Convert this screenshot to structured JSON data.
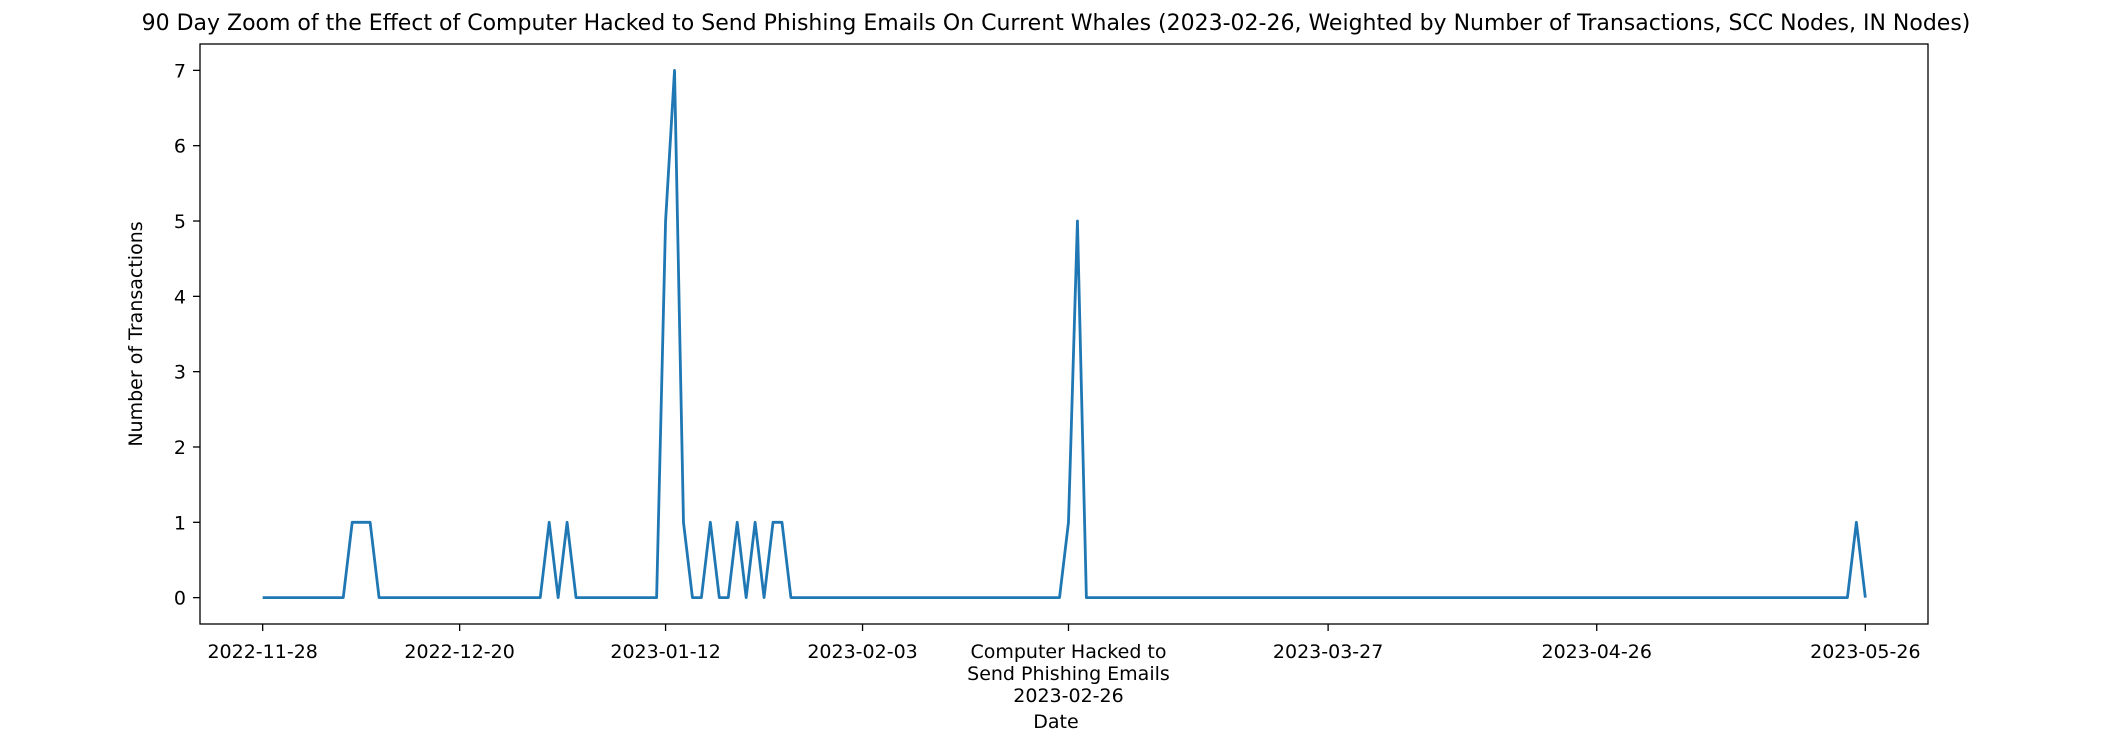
{
  "chart_data": {
    "type": "line",
    "title": "90 Day Zoom of the Effect of Computer Hacked to Send Phishing Emails On Current Whales (2023-02-26, Weighted by Number of Transactions, SCC Nodes, IN Nodes)",
    "xlabel": "Date",
    "ylabel": "Number of Transactions",
    "xlim": [
      "2022-11-21",
      "2023-06-02"
    ],
    "ylim": [
      -0.35,
      7.35
    ],
    "grid": false,
    "line_color": "#1f77b4",
    "x_ticks": [
      {
        "date": "2022-11-28",
        "label": "2022-11-28"
      },
      {
        "date": "2022-12-20",
        "label": "2022-12-20"
      },
      {
        "date": "2023-01-12",
        "label": "2023-01-12"
      },
      {
        "date": "2023-02-03",
        "label": "2023-02-03"
      },
      {
        "date": "2023-02-26",
        "label": "Computer Hacked to\nSend Phishing Emails\n2023-02-26"
      },
      {
        "date": "2023-03-27",
        "label": "2023-03-27"
      },
      {
        "date": "2023-04-26",
        "label": "2023-04-26"
      },
      {
        "date": "2023-05-26",
        "label": "2023-05-26"
      }
    ],
    "y_ticks": [
      0,
      1,
      2,
      3,
      4,
      5,
      6,
      7
    ],
    "series": [
      {
        "x": [
          "2022-11-28",
          "2022-12-07",
          "2022-12-08",
          "2022-12-09",
          "2022-12-10",
          "2022-12-11",
          "2022-12-29",
          "2022-12-30",
          "2022-12-31",
          "2023-01-01",
          "2023-01-02",
          "2023-01-11",
          "2023-01-12",
          "2023-01-13",
          "2023-01-14",
          "2023-01-15",
          "2023-01-16",
          "2023-01-17",
          "2023-01-18",
          "2023-01-19",
          "2023-01-20",
          "2023-01-21",
          "2023-01-22",
          "2023-01-23",
          "2023-01-24",
          "2023-01-25",
          "2023-01-26",
          "2023-01-27",
          "2023-01-28",
          "2023-02-25",
          "2023-02-26",
          "2023-02-27",
          "2023-02-28",
          "2023-05-24",
          "2023-05-25",
          "2023-05-26"
        ],
        "values": [
          0,
          0,
          1,
          1,
          1,
          0,
          0,
          1,
          0,
          1,
          0,
          0,
          5,
          7,
          1,
          0,
          0,
          1,
          0,
          0,
          1,
          0,
          1,
          0,
          1,
          1,
          0,
          0,
          0,
          0,
          1,
          5,
          0,
          0,
          1,
          0
        ]
      }
    ]
  }
}
